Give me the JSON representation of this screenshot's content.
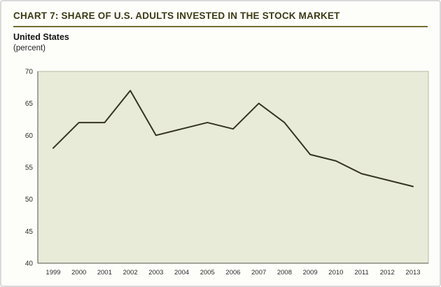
{
  "header": {
    "title": "CHART 7: SHARE OF U.S. ADULTS INVESTED IN THE STOCK MARKET",
    "subtitle": "United States",
    "unit_label": "(percent)"
  },
  "colors": {
    "title": "#3c3a15",
    "rule": "#70702f",
    "line": "#34341f",
    "plot_bg": "#e8ebd8",
    "plot_border": "#b9bba3",
    "axis": "#555548",
    "tick_text": "#2b2b2b"
  },
  "chart_data": {
    "type": "line",
    "title": "Share of U.S. adults invested in the stock market",
    "subtitle": "United States",
    "ylabel": "percent",
    "xlabel": "",
    "x": [
      1999,
      2000,
      2001,
      2002,
      2003,
      2004,
      2005,
      2006,
      2007,
      2008,
      2009,
      2010,
      2011,
      2012,
      2013
    ],
    "values": [
      58,
      62,
      62,
      67,
      60,
      61,
      62,
      61,
      65,
      62,
      57,
      56,
      54,
      53,
      52
    ],
    "ylim": [
      40,
      70
    ],
    "yticks": [
      40,
      45,
      50,
      55,
      60,
      65,
      70
    ],
    "grid": false,
    "legend_position": "none"
  }
}
